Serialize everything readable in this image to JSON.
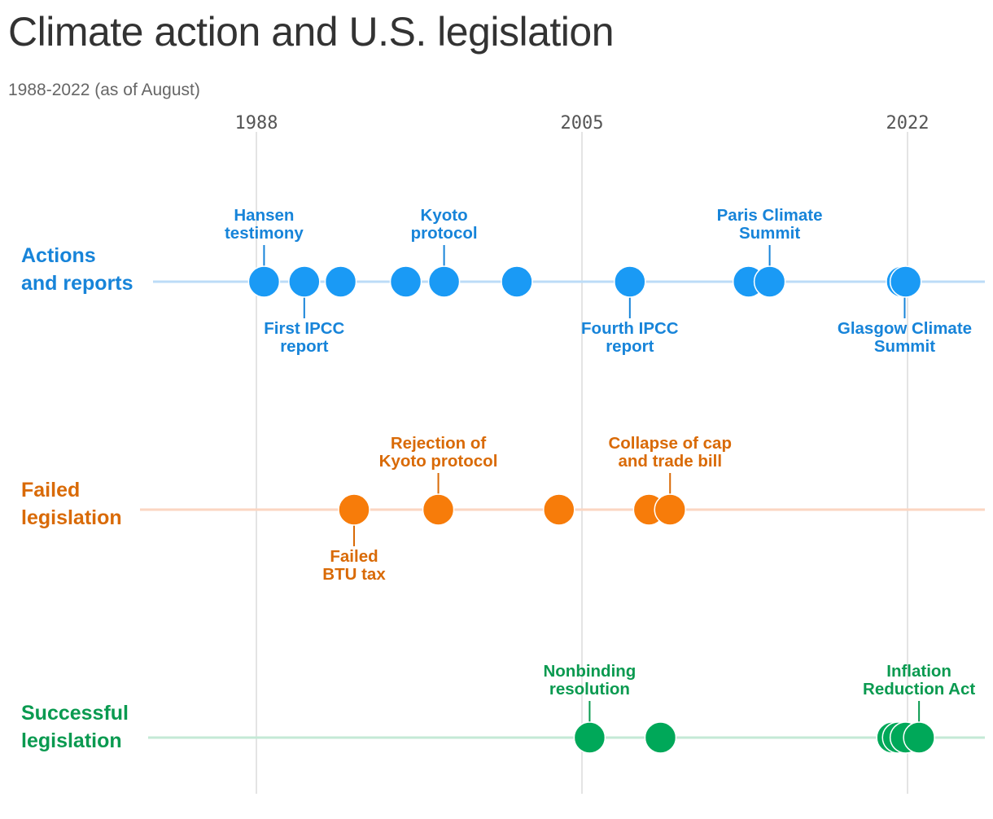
{
  "title": "Climate action and U.S. legislation",
  "subtitle": "1988-2022 (as of August)",
  "chart_data": {
    "type": "scatter",
    "xaxis": {
      "ticks": [
        1988,
        2005,
        2022
      ],
      "range": [
        1988,
        2022
      ],
      "gridlines": true
    },
    "series": [
      {
        "key": "actions",
        "label_lines": [
          "Actions",
          "and reports"
        ],
        "color": "#1a9af5",
        "line_color": "#bcdcf7",
        "label_color": "#1784d9",
        "x": [
          1988.4,
          1990.5,
          1992.4,
          1995.8,
          1997.8,
          2001.6,
          2007.5,
          2013.7,
          2014.8,
          2021.7,
          2021.9
        ],
        "annotations": [
          {
            "x": 1988.4,
            "position": "above",
            "lines": [
              "Hansen",
              "testimony"
            ]
          },
          {
            "x": 1990.5,
            "position": "below",
            "lines": [
              "First IPCC",
              "report"
            ]
          },
          {
            "x": 1997.8,
            "position": "above",
            "lines": [
              "Kyoto",
              "protocol"
            ]
          },
          {
            "x": 2007.5,
            "position": "below",
            "lines": [
              "Fourth IPCC",
              "report"
            ]
          },
          {
            "x": 2014.8,
            "position": "above",
            "lines": [
              "Paris Climate",
              "Summit"
            ]
          },
          {
            "x": 2021.85,
            "position": "below",
            "lines": [
              "Glasgow Climate",
              "Summit"
            ]
          }
        ]
      },
      {
        "key": "failed",
        "label_lines": [
          "Failed",
          "legislation"
        ],
        "color": "#f77c0a",
        "line_color": "#fbd6c2",
        "label_color": "#d96a06",
        "x": [
          1993.1,
          1997.5,
          2003.8,
          2008.5,
          2009.6
        ],
        "annotations": [
          {
            "x": 1993.1,
            "position": "below",
            "lines": [
              "Failed",
              "BTU tax"
            ]
          },
          {
            "x": 1997.5,
            "position": "above",
            "lines": [
              "Rejection of",
              "Kyoto protocol"
            ]
          },
          {
            "x": 2009.6,
            "position": "above",
            "lines": [
              "Collapse of cap",
              "and trade bill"
            ]
          }
        ]
      },
      {
        "key": "successful",
        "label_lines": [
          "Successful",
          "legislation"
        ],
        "color": "#00a859",
        "line_color": "#c4e9d6",
        "label_color": "#0a9a50",
        "x": [
          2005.4,
          2009.1,
          2021.2,
          2021.5,
          2021.9,
          2022.6
        ],
        "annotations": [
          {
            "x": 2005.4,
            "position": "above",
            "lines": [
              "Nonbinding",
              "resolution"
            ]
          },
          {
            "x": 2022.6,
            "position": "above",
            "lines": [
              "Inflation",
              "Reduction Act"
            ]
          }
        ]
      }
    ]
  }
}
